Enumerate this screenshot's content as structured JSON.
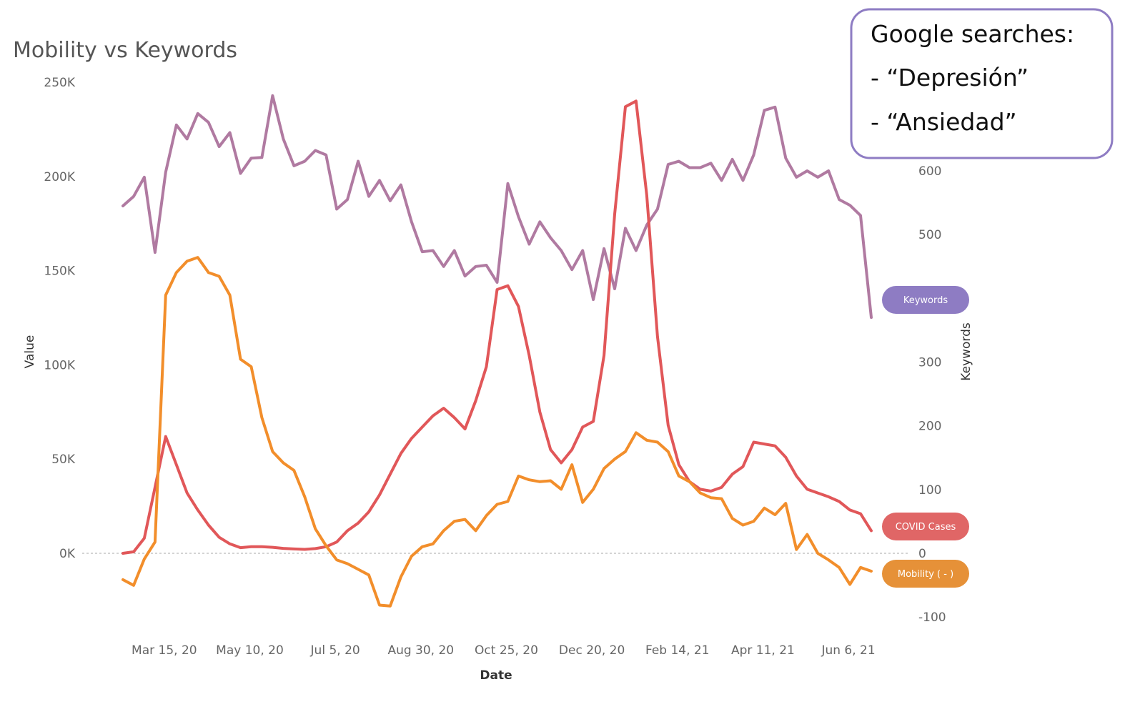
{
  "chart_data": {
    "type": "line",
    "title": "Mobility vs Keywords",
    "xlabel": "Date",
    "ylabel": "Value",
    "y2label": "Keywords",
    "ylim": [
      -40000,
      250000
    ],
    "y2lim": [
      -100,
      600
    ],
    "y_ticks": [
      "250K",
      "200K",
      "150K",
      "100K",
      "50K",
      "0K"
    ],
    "y_tick_values": [
      250000,
      200000,
      150000,
      100000,
      50000,
      0
    ],
    "y2_ticks": [
      "600",
      "500",
      "400",
      "300",
      "200",
      "100",
      "0",
      "-100"
    ],
    "y2_tick_values": [
      600,
      500,
      400,
      300,
      200,
      100,
      0,
      -100
    ],
    "x_start_index": 0,
    "x_ticks": [
      "Mar 15, 20",
      "May 10, 20",
      "Jul 5, 20",
      "Aug 30, 20",
      "Oct 25, 20",
      "Dec 20, 20",
      "Feb 14, 21",
      "Apr 11, 21",
      "Jun 6, 21"
    ],
    "x_tick_index": [
      4,
      12,
      20,
      28,
      36,
      44,
      52,
      60,
      68
    ],
    "zero_line": true,
    "series": [
      {
        "name": "Keywords",
        "axis": "right",
        "color": "#b07aa1",
        "values": [
          545,
          560,
          590,
          472,
          598,
          672,
          650,
          690,
          676,
          638,
          660,
          596,
          620,
          621,
          718,
          650,
          608,
          615,
          632,
          625,
          540,
          555,
          615,
          560,
          585,
          553,
          578,
          520,
          473,
          475,
          450,
          475,
          435,
          450,
          452,
          425,
          580,
          528,
          485,
          520,
          495,
          475,
          445,
          475,
          398,
          478,
          415,
          510,
          475,
          515,
          540,
          610,
          615,
          605,
          605,
          612,
          585,
          618,
          585,
          625,
          695,
          700,
          620,
          590,
          600,
          590,
          600,
          555,
          546,
          530,
          370
        ]
      },
      {
        "name": "COVID Cases",
        "axis": "left",
        "color": "#e15759",
        "values": [
          0,
          800,
          8000,
          35000,
          62000,
          47000,
          32000,
          23000,
          15000,
          8500,
          5000,
          3000,
          3500,
          3500,
          3200,
          2600,
          2300,
          2100,
          2500,
          3500,
          6000,
          12000,
          16000,
          22000,
          31000,
          42000,
          53000,
          61000,
          67000,
          73000,
          77000,
          72000,
          66000,
          81000,
          99000,
          140000,
          142000,
          131000,
          105000,
          75000,
          55000,
          48000,
          55000,
          67000,
          70000,
          105000,
          180000,
          237000,
          240000,
          190000,
          115000,
          68000,
          47000,
          38000,
          34000,
          33000,
          35000,
          42000,
          46000,
          59000,
          58000,
          57000,
          51000,
          41000,
          34000,
          32000,
          30000,
          27500,
          23000,
          21000,
          12000
        ]
      },
      {
        "name": "Mobility ( - )",
        "axis": "left",
        "color": "#f28e2b",
        "values": [
          -14000,
          -17000,
          -3000,
          6000,
          137000,
          149000,
          155000,
          157000,
          149000,
          147000,
          137000,
          103000,
          99000,
          72000,
          54000,
          48000,
          44000,
          30000,
          13000,
          4000,
          -3500,
          -5500,
          -8500,
          -11500,
          -27500,
          -28000,
          -12500,
          -1500,
          3500,
          5000,
          12000,
          17000,
          18000,
          12000,
          20000,
          26000,
          27500,
          41000,
          39000,
          38000,
          38500,
          34000,
          47000,
          27000,
          34000,
          45000,
          50000,
          54000,
          64000,
          60000,
          59000,
          54000,
          41000,
          38000,
          32000,
          29500,
          29000,
          18500,
          15000,
          17000,
          24000,
          20500,
          26500,
          2000,
          10000,
          0,
          -3500,
          -7500,
          -16500,
          -7500,
          -9500
        ]
      }
    ],
    "legend_badges": [
      {
        "label": "Keywords",
        "color": "#8e7cc3"
      },
      {
        "label": "COVID Cases",
        "color": "#e06666"
      },
      {
        "label": "Mobility ( - )",
        "color": "#e69138"
      }
    ]
  },
  "callout": {
    "line1": "Google searches:",
    "line2": "- “Depresión”",
    "line3": "- “Ansiedad”",
    "border_color": "#8e7cc3"
  }
}
